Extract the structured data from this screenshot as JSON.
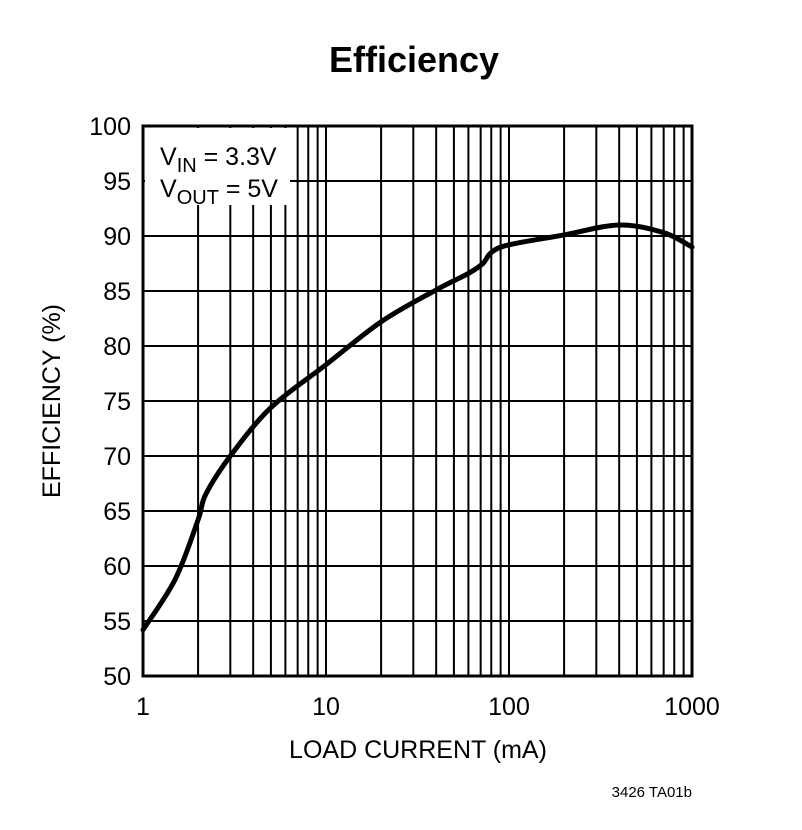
{
  "chart_data": {
    "type": "line",
    "title": "Efficiency",
    "xlabel": "LOAD CURRENT (mA)",
    "ylabel": "EFFICIENCY (%)",
    "xscale": "log",
    "xlim": [
      1,
      1000
    ],
    "ylim": [
      50,
      100
    ],
    "xticks": [
      "1",
      "10",
      "100",
      "1000"
    ],
    "yticks": [
      "50",
      "55",
      "60",
      "65",
      "70",
      "75",
      "80",
      "85",
      "90",
      "95",
      "100"
    ],
    "grid": true,
    "annotation": {
      "vin_label": "V",
      "vin_sub": "IN",
      "vin_value": " = 3.3V",
      "vout_label": "V",
      "vout_sub": "OUT",
      "vout_value": " = 5V"
    },
    "footnote": "3426 TA01b",
    "series": [
      {
        "name": "Efficiency",
        "x": [
          1,
          1.5,
          2,
          2.2,
          3,
          5,
          10,
          20,
          40,
          60,
          72,
          80,
          100,
          200,
          400,
          700,
          1000
        ],
        "y": [
          54.2,
          58.8,
          64.2,
          66.5,
          70,
          74.4,
          78.3,
          82.2,
          85.1,
          86.6,
          87.5,
          88.5,
          89.2,
          90.1,
          91.0,
          90.3,
          89.0
        ]
      }
    ],
    "colors": {
      "line": "#000000",
      "grid": "#000000"
    }
  }
}
